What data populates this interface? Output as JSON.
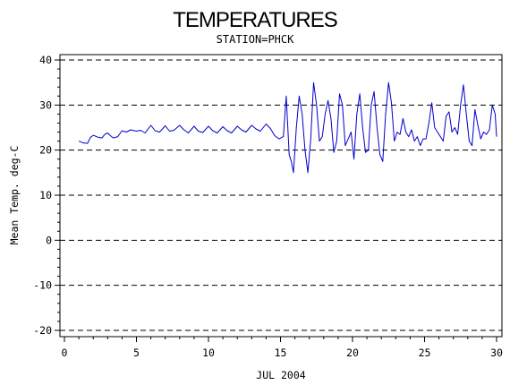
{
  "chart_data": {
    "type": "line",
    "title": "TEMPERATURES",
    "subtitle": "STATION=PHCK",
    "xlabel": "JUL 2004",
    "ylabel": "Mean Temp. deg-C",
    "xlim": [
      0,
      30
    ],
    "ylim": [
      -20,
      40
    ],
    "xticks": [
      0,
      5,
      10,
      15,
      20,
      25,
      30
    ],
    "yticks": [
      -20,
      -10,
      0,
      10,
      20,
      30,
      40
    ],
    "xtick_labels": [
      "0",
      "5",
      "10",
      "15",
      "20",
      "25",
      "30"
    ],
    "ytick_labels": [
      "-20",
      "-10",
      "0",
      "10",
      "20",
      "30",
      "40"
    ],
    "grid": "horizontal dashed",
    "series": [
      {
        "color": "#0000cc",
        "x": [
          1.0,
          1.3,
          1.6,
          1.8,
          2.0,
          2.3,
          2.6,
          2.8,
          3.0,
          3.2,
          3.4,
          3.7,
          4.0,
          4.3,
          4.6,
          5.0,
          5.3,
          5.6,
          6.0,
          6.3,
          6.6,
          7.0,
          7.3,
          7.6,
          8.0,
          8.3,
          8.6,
          9.0,
          9.3,
          9.6,
          10.0,
          10.3,
          10.6,
          11.0,
          11.3,
          11.6,
          12.0,
          12.3,
          12.6,
          13.0,
          13.3,
          13.6,
          14.0,
          14.3,
          14.6,
          14.9,
          15.2,
          15.4,
          15.6,
          15.75,
          15.9,
          16.1,
          16.3,
          16.5,
          16.7,
          16.9,
          17.1,
          17.3,
          17.5,
          17.7,
          17.9,
          18.1,
          18.3,
          18.5,
          18.7,
          18.9,
          19.1,
          19.3,
          19.5,
          19.7,
          19.9,
          20.1,
          20.3,
          20.5,
          20.7,
          20.9,
          21.1,
          21.3,
          21.5,
          21.7,
          21.9,
          22.1,
          22.3,
          22.5,
          22.7,
          22.9,
          23.1,
          23.3,
          23.5,
          23.7,
          23.9,
          24.1,
          24.3,
          24.5,
          24.7,
          24.9,
          25.1,
          25.3,
          25.5,
          25.7,
          25.9,
          26.1,
          26.3,
          26.5,
          26.7,
          26.9,
          27.1,
          27.3,
          27.5,
          27.7,
          27.9,
          28.1,
          28.3,
          28.5,
          28.7,
          28.9,
          29.1,
          29.3,
          29.5,
          29.7,
          29.9,
          30.0
        ],
        "values": [
          22.0,
          21.6,
          21.5,
          22.8,
          23.3,
          22.9,
          22.7,
          23.5,
          23.8,
          23.2,
          22.7,
          23.0,
          24.3,
          24.0,
          24.5,
          24.2,
          24.4,
          23.8,
          25.5,
          24.3,
          24.0,
          25.4,
          24.2,
          24.4,
          25.5,
          24.5,
          23.8,
          25.3,
          24.2,
          23.9,
          25.3,
          24.3,
          23.8,
          25.2,
          24.3,
          23.8,
          25.3,
          24.5,
          24.0,
          25.5,
          24.7,
          24.2,
          25.8,
          24.8,
          23.2,
          22.5,
          23.0,
          32.0,
          19.0,
          17.5,
          15.0,
          25.0,
          32.0,
          28.0,
          20.0,
          15.0,
          22.5,
          35.0,
          30.0,
          22.0,
          23.0,
          28.0,
          31.0,
          27.0,
          19.5,
          22.0,
          32.5,
          30.0,
          21.0,
          22.5,
          24.0,
          18.0,
          28.0,
          32.5,
          25.0,
          19.5,
          20.0,
          30.0,
          33.0,
          25.0,
          19.0,
          17.5,
          28.0,
          35.0,
          30.5,
          22.0,
          24.0,
          23.5,
          27.0,
          24.0,
          23.0,
          24.5,
          22.0,
          23.0,
          21.0,
          22.5,
          22.5,
          26.0,
          30.5,
          25.0,
          24.0,
          23.0,
          22.0,
          27.5,
          28.5,
          24.0,
          25.0,
          23.5,
          30.0,
          34.5,
          28.0,
          22.0,
          21.0,
          29.0,
          25.5,
          22.5,
          24.0,
          23.5,
          24.5,
          30.0,
          28.0,
          23.0
        ]
      }
    ]
  }
}
